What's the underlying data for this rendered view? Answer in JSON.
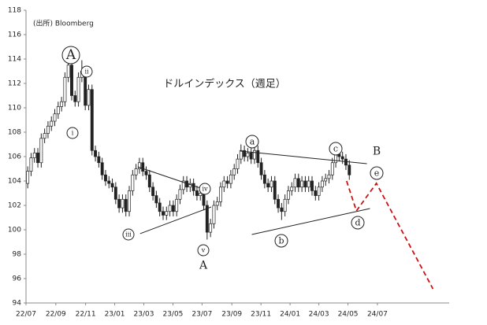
{
  "chart_data": {
    "type": "candlestick",
    "title": "ドルインデックス（週足）",
    "source": "(出所) Bloomberg",
    "ylim": [
      94,
      118
    ],
    "yticks": [
      94,
      96,
      98,
      100,
      102,
      104,
      106,
      108,
      110,
      112,
      114,
      116,
      118
    ],
    "xlim": [
      -0.5,
      124.5
    ],
    "xticks": [
      {
        "value": -0.5,
        "label": "22/07"
      },
      {
        "value": 8.3,
        "label": "22/09"
      },
      {
        "value": 17.1,
        "label": "22/11"
      },
      {
        "value": 25.7,
        "label": "23/01"
      },
      {
        "value": 34.3,
        "label": "23/03"
      },
      {
        "value": 42.9,
        "label": "23/05"
      },
      {
        "value": 51.5,
        "label": "23/07"
      },
      {
        "value": 60.3,
        "label": "23/09"
      },
      {
        "value": 68.9,
        "label": "23/11"
      },
      {
        "value": 77.5,
        "label": "24/01"
      },
      {
        "value": 86.0,
        "label": "24/03"
      },
      {
        "value": 94.6,
        "label": "24/05"
      },
      {
        "value": 103.3,
        "label": "24/07"
      }
    ],
    "up_color": "#ffffff",
    "down_color": "#222222",
    "edge_color": "#222222",
    "x": [
      0,
      1,
      2,
      3,
      4,
      5,
      6,
      7,
      8,
      9,
      10,
      11,
      12,
      13,
      14,
      15,
      16,
      17,
      18,
      19,
      20,
      21,
      22,
      23,
      24,
      25,
      26,
      27,
      28,
      29,
      30,
      31,
      32,
      33,
      34,
      35,
      36,
      37,
      38,
      39,
      40,
      41,
      42,
      43,
      44,
      45,
      46,
      47,
      48,
      49,
      50,
      51,
      52,
      53,
      54,
      55,
      56,
      57,
      58,
      59,
      60,
      61,
      62,
      63,
      64,
      65,
      66,
      67,
      68,
      69,
      70,
      71,
      72,
      73,
      74,
      75,
      76,
      77,
      78,
      79,
      80,
      81,
      82,
      83,
      84,
      85,
      86,
      87,
      88,
      89,
      90,
      91,
      92,
      93,
      94,
      95
    ],
    "open": [
      103.8,
      104.8,
      105.9,
      106.3,
      105.5,
      107.5,
      107.9,
      108.5,
      108.9,
      109.5,
      110.1,
      110.5,
      112.5,
      113.5,
      111.0,
      110.5,
      112.5,
      113.0,
      110.2,
      111.5,
      106.5,
      106.0,
      105.5,
      104.5,
      104.0,
      103.8,
      103.5,
      102.5,
      101.8,
      102.5,
      101.5,
      103.2,
      104.5,
      105.0,
      105.5,
      104.8,
      104.5,
      103.5,
      102.8,
      102.2,
      101.5,
      101.2,
      101.5,
      102.0,
      101.5,
      102.5,
      103.3,
      104.0,
      103.5,
      103.8,
      103.2,
      102.8,
      103.0,
      102.0,
      99.8,
      100.5,
      102.0,
      102.3,
      103.5,
      104.0,
      103.8,
      104.5,
      105.0,
      105.8,
      106.5,
      106.0,
      106.3,
      105.8,
      106.5,
      105.5,
      104.5,
      103.8,
      103.5,
      104.0,
      102.5,
      101.8,
      101.5,
      102.5,
      103.2,
      103.5,
      104.2,
      103.5,
      104.0,
      103.5,
      104.0,
      103.2,
      102.8,
      103.5,
      104.0,
      104.2,
      104.5,
      105.5,
      106.2,
      106.0,
      105.8,
      105.3
    ],
    "high": [
      105.2,
      106.3,
      106.7,
      106.7,
      107.9,
      108.3,
      108.9,
      109.3,
      109.9,
      110.5,
      110.9,
      112.9,
      114.8,
      113.9,
      111.4,
      112.9,
      113.9,
      113.4,
      111.9,
      111.9,
      106.9,
      106.4,
      105.9,
      104.9,
      104.4,
      104.2,
      103.9,
      102.9,
      102.9,
      102.9,
      103.6,
      104.9,
      105.4,
      105.9,
      105.9,
      105.2,
      104.9,
      103.9,
      103.2,
      102.6,
      101.9,
      101.9,
      102.4,
      102.4,
      102.9,
      103.7,
      104.4,
      104.4,
      104.2,
      104.2,
      103.6,
      103.4,
      103.4,
      102.4,
      100.9,
      102.4,
      102.7,
      103.9,
      104.4,
      104.4,
      104.9,
      105.4,
      106.2,
      107.0,
      106.9,
      106.7,
      106.7,
      106.9,
      106.9,
      105.9,
      104.9,
      104.2,
      104.4,
      104.4,
      102.9,
      102.2,
      102.9,
      103.6,
      103.9,
      104.6,
      104.6,
      104.4,
      104.4,
      104.4,
      104.4,
      103.6,
      103.9,
      104.4,
      104.6,
      104.9,
      105.9,
      106.6,
      106.6,
      106.4,
      106.2,
      105.7
    ],
    "low": [
      103.4,
      104.4,
      105.5,
      105.1,
      105.1,
      107.1,
      107.5,
      108.1,
      108.5,
      109.1,
      109.7,
      110.1,
      112.1,
      110.6,
      110.1,
      110.1,
      112.1,
      109.8,
      109.8,
      106.1,
      105.6,
      105.1,
      104.1,
      103.6,
      103.4,
      103.1,
      102.1,
      101.4,
      101.4,
      101.1,
      101.1,
      102.8,
      104.1,
      104.6,
      104.4,
      104.1,
      103.1,
      102.4,
      101.8,
      101.1,
      100.8,
      100.8,
      101.1,
      101.1,
      101.1,
      102.1,
      102.9,
      103.1,
      103.1,
      102.8,
      102.4,
      102.4,
      101.6,
      99.2,
      99.4,
      100.1,
      101.6,
      101.9,
      103.1,
      103.4,
      103.4,
      104.1,
      104.6,
      105.4,
      105.6,
      105.6,
      105.4,
      105.4,
      105.1,
      104.1,
      103.4,
      103.1,
      103.1,
      102.1,
      101.4,
      100.8,
      101.1,
      102.1,
      102.8,
      103.1,
      103.1,
      103.1,
      103.1,
      103.1,
      102.8,
      102.4,
      102.4,
      103.1,
      103.6,
      103.8,
      104.1,
      105.1,
      105.6,
      105.4,
      104.9,
      104.1
    ],
    "close": [
      104.8,
      105.9,
      106.3,
      105.5,
      107.5,
      107.9,
      108.5,
      108.9,
      109.5,
      110.1,
      110.5,
      112.5,
      113.5,
      111.0,
      110.5,
      112.5,
      113.0,
      110.2,
      111.5,
      106.5,
      106.0,
      105.5,
      104.5,
      104.0,
      103.8,
      103.5,
      102.5,
      101.8,
      102.5,
      101.5,
      103.2,
      104.5,
      105.0,
      105.5,
      104.8,
      104.5,
      103.5,
      102.8,
      102.2,
      101.5,
      101.2,
      101.5,
      102.0,
      101.5,
      102.5,
      103.3,
      104.0,
      103.5,
      103.8,
      103.2,
      102.8,
      103.0,
      102.0,
      99.8,
      100.5,
      102.0,
      102.3,
      103.5,
      104.0,
      103.8,
      104.5,
      105.0,
      105.8,
      106.5,
      106.0,
      106.3,
      105.8,
      106.5,
      105.5,
      104.5,
      103.8,
      103.5,
      104.0,
      102.5,
      101.8,
      101.5,
      102.5,
      103.2,
      103.5,
      104.2,
      103.5,
      104.0,
      103.5,
      104.0,
      103.2,
      102.8,
      103.5,
      104.0,
      104.2,
      104.5,
      105.5,
      106.2,
      106.0,
      105.8,
      105.3,
      104.5
    ],
    "lines": [
      {
        "color": "#222222",
        "dashed": false,
        "x": [
          32.5,
          51.8
        ],
        "y": [
          105.16,
          103.35
        ]
      },
      {
        "color": "#222222",
        "dashed": false,
        "x": [
          33.2,
          54.2
        ],
        "y": [
          99.68,
          101.87
        ]
      },
      {
        "color": "#222222",
        "dashed": false,
        "x": [
          62.8,
          100.2
        ],
        "y": [
          106.45,
          105.42
        ]
      },
      {
        "color": "#222222",
        "dashed": false,
        "x": [
          66.2,
          101.1
        ],
        "y": [
          99.61,
          101.74
        ]
      },
      {
        "color": "#cc1111",
        "dashed": true,
        "x": [
          94.2,
          97.1,
          103.0,
          119.7
        ],
        "y": [
          104.0,
          101.55,
          103.81,
          95.16
        ]
      }
    ],
    "labels": [
      "A",
      "ii",
      "i",
      "iii",
      "iv",
      "v",
      "A",
      "a",
      "c",
      "B",
      "e",
      "d",
      "b"
    ]
  }
}
